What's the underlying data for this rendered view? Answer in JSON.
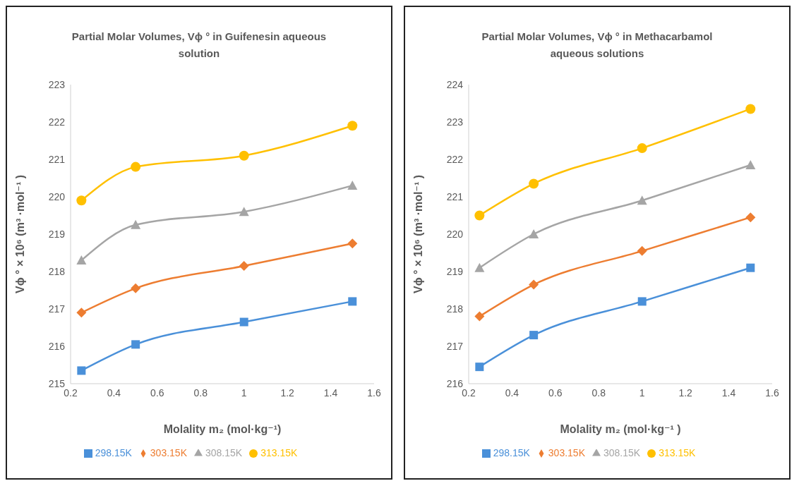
{
  "chart_data": [
    {
      "type": "line",
      "title": "Partial Molar Volumes, Vϕ ° in Guifenesin aqueous solution",
      "xlabel": "Molality m₂ (mol·kg⁻¹)",
      "ylabel": "Vϕ ° × 10⁶   (m³ ·mol⁻¹ )",
      "x": [
        0.25,
        0.5,
        1,
        1.5
      ],
      "xlim": [
        0.2,
        1.6
      ],
      "xticks": [
        0.2,
        0.4,
        0.6,
        0.8,
        1,
        1.2,
        1.4,
        1.6
      ],
      "ylim": [
        215,
        223
      ],
      "yticks": [
        215,
        216,
        217,
        218,
        219,
        220,
        221,
        222,
        223
      ],
      "grid": false,
      "legend": "bottom",
      "series": [
        {
          "name": "298.15K",
          "color": "#4a90d9",
          "marker": "square",
          "values": [
            215.35,
            216.05,
            216.65,
            217.2
          ]
        },
        {
          "name": "303.15K",
          "color": "#ed7d31",
          "marker": "diamond",
          "values": [
            216.9,
            217.55,
            218.15,
            218.75
          ]
        },
        {
          "name": "308.15K",
          "color": "#a5a5a5",
          "marker": "triangle",
          "values": [
            218.3,
            219.25,
            219.6,
            220.3
          ]
        },
        {
          "name": "313.15K",
          "color": "#ffc000",
          "marker": "circle",
          "values": [
            219.9,
            220.8,
            221.1,
            221.9
          ]
        }
      ]
    },
    {
      "type": "line",
      "title": "Partial Molar Volumes, Vϕ °  in Methacarbamol aqueous solutions",
      "xlabel": "Molality m₂ (mol·kg⁻¹ )",
      "ylabel": "Vϕ ° × 10⁶   (m³ ·mol⁻¹ )",
      "x": [
        0.25,
        0.5,
        1,
        1.5
      ],
      "xlim": [
        0.2,
        1.6
      ],
      "xticks": [
        0.2,
        0.4,
        0.6,
        0.8,
        1,
        1.2,
        1.4,
        1.6
      ],
      "ylim": [
        216,
        224
      ],
      "yticks": [
        216,
        217,
        218,
        219,
        220,
        221,
        222,
        223,
        224
      ],
      "grid": false,
      "legend": "bottom",
      "series": [
        {
          "name": "298.15K",
          "color": "#4a90d9",
          "marker": "square",
          "values": [
            216.45,
            217.3,
            218.2,
            219.1
          ]
        },
        {
          "name": "303.15K",
          "color": "#ed7d31",
          "marker": "diamond",
          "values": [
            217.8,
            218.65,
            219.55,
            220.45
          ]
        },
        {
          "name": "308.15K",
          "color": "#a5a5a5",
          "marker": "triangle",
          "values": [
            219.1,
            220.0,
            220.9,
            221.85
          ]
        },
        {
          "name": "313.15K",
          "color": "#ffc000",
          "marker": "circle",
          "values": [
            220.5,
            221.35,
            222.3,
            223.35
          ]
        }
      ]
    }
  ]
}
